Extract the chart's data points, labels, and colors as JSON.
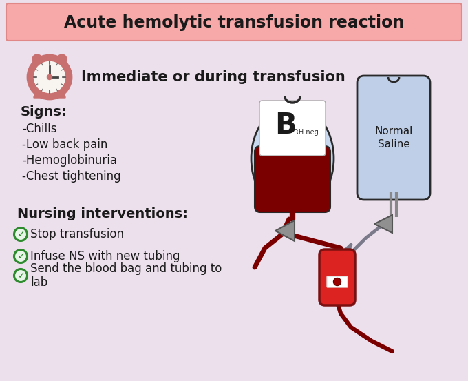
{
  "background_color": "#ede0ed",
  "title": "Acute hemolytic transfusion reaction",
  "title_bg": "#f7a8a8",
  "title_fontsize": 17,
  "subtitle": "Immediate or during transfusion",
  "subtitle_fontsize": 15,
  "signs_header": "Signs:",
  "signs": [
    "-Chills",
    "-Low back pain",
    "-Hemoglobinuria",
    "-Chest tightening"
  ],
  "nursing_header": "Nursing interventions:",
  "nursing_items": [
    "Stop transfusion",
    "Infuse NS with new tubing",
    "Send the blood bag and tubing to\nlab"
  ],
  "dark_color": "#1a1a1a",
  "checkmark_color": "#2e8b2e",
  "blood_bag_outer": "#c8d8ee",
  "blood_bag_inner": "#7a0000",
  "blood_bag_border": "#2a2a2a",
  "saline_bag_color": "#c0cfe8",
  "saline_bag_border": "#2a2a2a",
  "tubing_color": "#7a0000",
  "clock_body": "#c87070",
  "clock_face_color": "#f8f4f0",
  "pump_red": "#cc2222",
  "pump_border": "#7a1010"
}
